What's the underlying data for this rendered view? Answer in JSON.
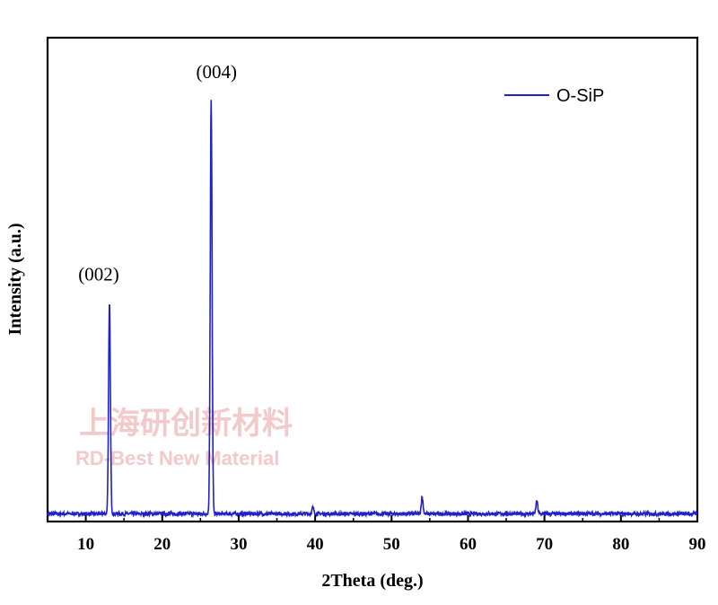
{
  "chart_data": {
    "type": "line",
    "xlabel": "2Theta (deg.)",
    "ylabel": "Intensity (a.u.)",
    "xlim": [
      5,
      90
    ],
    "ylim": [
      0,
      100
    ],
    "x_ticks": [
      10,
      20,
      30,
      40,
      50,
      60,
      70,
      80,
      90
    ],
    "y_ticks_shown": false,
    "legend": {
      "position": "top-right"
    },
    "series": [
      {
        "name": "O-SiP",
        "color": "#1f22c8",
        "baseline": 1,
        "peaks": [
          {
            "x": 13.1,
            "y": 51,
            "label": "(002)"
          },
          {
            "x": 26.4,
            "y": 100,
            "label": "(004)"
          },
          {
            "x": 54.0,
            "y": 4
          },
          {
            "x": 69.0,
            "y": 3
          },
          {
            "x": 39.7,
            "y": 1.5
          }
        ]
      }
    ],
    "watermark": {
      "line1": "上海研创新材料",
      "line2": "RD-Best New Material"
    }
  }
}
